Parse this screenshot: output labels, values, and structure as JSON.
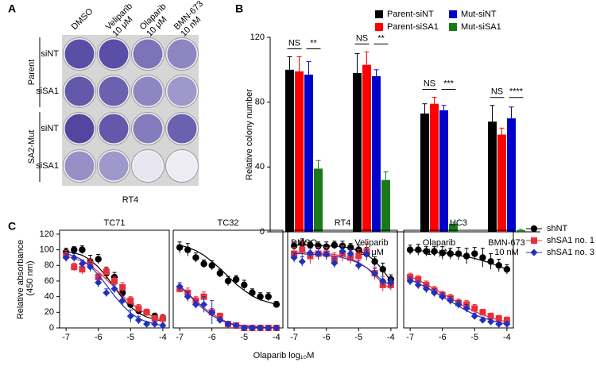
{
  "panel_labels": [
    "A",
    "B",
    "C"
  ],
  "panel_a": {
    "columns": [
      "DMSO",
      "Veliparib 10 μM",
      "Olaparib 10 μM",
      "BMN-673 10 nM"
    ],
    "groups": [
      "Parent",
      "SA2-Mut"
    ],
    "rows": [
      "siNT",
      "siSA1",
      "siNT",
      "siSA1"
    ],
    "cell_line": "RT4"
  },
  "chart_data": [
    {
      "type": "bar",
      "y_label": "Relative colony number",
      "categories": [
        "DMSO",
        "Veliparib 10 μM",
        "Olaparib 10 μM",
        "BMN-673 10 nM"
      ],
      "series": [
        {
          "name": "Parent-siNT",
          "color": "#000000",
          "values": [
            100,
            98,
            73,
            68
          ],
          "errors": [
            8,
            12,
            6,
            10
          ]
        },
        {
          "name": "Parent-siSA1",
          "color": "#ff0000",
          "values": [
            99,
            103,
            79,
            60
          ],
          "errors": [
            9,
            8,
            4,
            4
          ]
        },
        {
          "name": "Mut-siNT",
          "color": "#0000cc",
          "values": [
            97,
            96,
            75,
            70
          ],
          "errors": [
            8,
            4,
            3,
            7
          ]
        },
        {
          "name": "Mut-siSA1",
          "color": "#1a7a1a",
          "values": [
            39,
            32,
            5,
            1
          ],
          "errors": [
            5,
            5,
            1,
            0.5
          ]
        }
      ],
      "significance": [
        [
          "NS",
          "**"
        ],
        [
          "NS",
          "**"
        ],
        [
          "NS",
          "***"
        ],
        [
          "NS",
          "****"
        ]
      ],
      "ylim": [
        0,
        120
      ],
      "yticks": [
        0,
        40,
        80,
        120
      ]
    },
    {
      "type": "line",
      "title": "TC71",
      "y_label": "Relative absorbance (450 nm)",
      "x_label": "Olaparib log₁₀M",
      "x": [
        -7,
        -6.75,
        -6.5,
        -6.25,
        -6,
        -5.75,
        -5.5,
        -5.25,
        -5,
        -4.75,
        -4.5,
        -4.25,
        -4
      ],
      "series": [
        {
          "name": "shNT",
          "color": "#000000",
          "marker": "circle",
          "values": [
            97,
            100,
            100,
            85,
            88,
            70,
            65,
            45,
            30,
            22,
            20,
            15,
            12
          ],
          "errors": [
            5,
            4,
            5,
            8,
            6,
            7,
            6,
            8,
            5,
            5,
            4,
            4,
            5
          ],
          "fit": [
            98,
            96,
            93,
            87,
            78,
            66,
            52,
            38,
            27,
            19,
            14,
            11,
            9
          ]
        },
        {
          "name": "shSA1 no. 1",
          "color": "#e8303a",
          "marker": "square",
          "values": [
            93,
            78,
            75,
            82,
            65,
            72,
            60,
            52,
            35,
            25,
            20,
            12,
            12
          ],
          "errors": [
            6,
            5,
            6,
            6,
            5,
            6,
            5,
            6,
            5,
            5,
            4,
            4,
            4
          ],
          "fit": [
            92,
            89,
            85,
            80,
            72,
            62,
            52,
            41,
            32,
            24,
            18,
            14,
            11
          ]
        },
        {
          "name": "shSA1 no. 3",
          "color": "#2030c0",
          "marker": "diamond",
          "values": [
            90,
            90,
            82,
            78,
            58,
            45,
            50,
            35,
            15,
            10,
            5,
            5,
            3
          ],
          "errors": [
            5,
            5,
            5,
            6,
            6,
            5,
            5,
            6,
            8,
            5,
            3,
            3,
            3
          ],
          "fit": [
            95,
            92,
            87,
            79,
            68,
            55,
            41,
            29,
            19,
            12,
            8,
            5,
            3
          ]
        }
      ],
      "xlim": [
        -7.2,
        -3.8
      ],
      "xticks": [
        -7,
        -6,
        -5,
        -4
      ],
      "ylim": [
        0,
        125
      ],
      "yticks": [
        0,
        20,
        40,
        60,
        80,
        100,
        120
      ]
    },
    {
      "type": "line",
      "title": "TC32",
      "x": [
        -7,
        -6.75,
        -6.5,
        -6.25,
        -6,
        -5.75,
        -5.5,
        -5.25,
        -5,
        -4.75,
        -4.5,
        -4.25,
        -4
      ],
      "series": [
        {
          "color": "#000000",
          "marker": "circle",
          "values": [
            103,
            100,
            90,
            82,
            80,
            70,
            60,
            62,
            55,
            45,
            40,
            40,
            30
          ],
          "errors": [
            7,
            8,
            6,
            5,
            6,
            5,
            6,
            5,
            6,
            5,
            5,
            5,
            4
          ],
          "fit": [
            106,
            103,
            99,
            93,
            85,
            76,
            66,
            56,
            48,
            41,
            36,
            33,
            30
          ]
        },
        {
          "color": "#e8303a",
          "marker": "square",
          "values": [
            50,
            45,
            35,
            40,
            20,
            15,
            5,
            3,
            0,
            0,
            0,
            0,
            0
          ],
          "errors": [
            5,
            6,
            5,
            6,
            5,
            4,
            3,
            2,
            1,
            1,
            1,
            1,
            1
          ],
          "fit": [
            52,
            44,
            35,
            26,
            18,
            12,
            7,
            4,
            3,
            2,
            1,
            1,
            1
          ]
        },
        {
          "color": "#2030c0",
          "marker": "diamond",
          "values": [
            53,
            40,
            30,
            30,
            20,
            10,
            5,
            3,
            0,
            0,
            0,
            0,
            0
          ],
          "errors": [
            5,
            6,
            5,
            10,
            15,
            4,
            3,
            2,
            1,
            1,
            1,
            1,
            1
          ],
          "fit": [
            54,
            44,
            33,
            24,
            16,
            10,
            6,
            3,
            2,
            1,
            1,
            0,
            0
          ]
        }
      ],
      "xlim": [
        -7.2,
        -3.8
      ],
      "xticks": [
        -7,
        -6,
        -5,
        -4
      ],
      "ylim": [
        0,
        125
      ],
      "yticks": [
        0,
        20,
        40,
        60,
        80,
        100,
        120
      ]
    },
    {
      "type": "line",
      "title": "RT4",
      "x": [
        -7,
        -6.75,
        -6.5,
        -6.25,
        -6,
        -5.75,
        -5.5,
        -5.25,
        -5,
        -4.75,
        -4.5,
        -4.25,
        -4
      ],
      "series": [
        {
          "color": "#000000",
          "marker": "circle",
          "values": [
            105,
            108,
            106,
            105,
            104,
            106,
            105,
            103,
            100,
            95,
            85,
            75,
            62
          ],
          "errors": [
            5,
            6,
            5,
            5,
            6,
            5,
            6,
            5,
            6,
            8,
            6,
            8,
            6
          ],
          "fit": [
            106,
            106,
            106,
            106,
            105,
            105,
            104,
            102,
            99,
            94,
            86,
            74,
            60
          ]
        },
        {
          "color": "#e8303a",
          "marker": "square",
          "values": [
            95,
            100,
            92,
            95,
            95,
            88,
            95,
            90,
            92,
            98,
            70,
            55,
            55
          ],
          "errors": [
            8,
            10,
            10,
            8,
            8,
            8,
            10,
            8,
            8,
            10,
            8,
            8,
            7
          ],
          "fit": [
            97,
            97,
            96,
            96,
            95,
            94,
            92,
            89,
            84,
            77,
            67,
            57,
            50
          ]
        },
        {
          "color": "#2030c0",
          "marker": "diamond",
          "values": [
            90,
            85,
            96,
            95,
            94,
            83,
            98,
            95,
            80,
            95,
            70,
            60,
            58
          ],
          "errors": [
            6,
            6,
            6,
            6,
            6,
            6,
            6,
            6,
            6,
            6,
            6,
            6,
            6
          ],
          "fit": [
            95,
            95,
            94,
            94,
            93,
            92,
            90,
            87,
            83,
            77,
            69,
            60,
            55
          ]
        }
      ],
      "xlim": [
        -7.2,
        -3.8
      ],
      "xticks": [
        -7,
        -6,
        -5,
        -4
      ],
      "ylim": [
        0,
        125
      ],
      "yticks": [
        0,
        20,
        40,
        60,
        80,
        100,
        120
      ]
    },
    {
      "type": "line",
      "title": "UC3",
      "x": [
        -7,
        -6.75,
        -6.5,
        -6.25,
        -6,
        -5.75,
        -5.5,
        -5.25,
        -5,
        -4.75,
        -4.5,
        -4.25,
        -4
      ],
      "series": [
        {
          "color": "#000000",
          "marker": "circle",
          "values": [
            100,
            100,
            98,
            98,
            96,
            95,
            95,
            92,
            95,
            90,
            85,
            80,
            75
          ],
          "errors": [
            6,
            7,
            6,
            6,
            8,
            7,
            8,
            10,
            8,
            12,
            10,
            8,
            6
          ],
          "fit": [
            100,
            99,
            98,
            97,
            96,
            95,
            93,
            91,
            89,
            86,
            83,
            79,
            75
          ]
        },
        {
          "color": "#e8303a",
          "marker": "square",
          "values": [
            65,
            62,
            55,
            48,
            42,
            38,
            32,
            30,
            25,
            20,
            15,
            12,
            10
          ],
          "errors": [
            5,
            5,
            5,
            5,
            5,
            5,
            5,
            5,
            5,
            4,
            4,
            4,
            4
          ],
          "fit": [
            66,
            61,
            56,
            50,
            44,
            38,
            32,
            26,
            21,
            17,
            13,
            10,
            8
          ]
        },
        {
          "color": "#2030c0",
          "marker": "diamond",
          "values": [
            60,
            55,
            50,
            45,
            40,
            35,
            30,
            25,
            15,
            10,
            8,
            5,
            5
          ],
          "errors": [
            5,
            5,
            5,
            5,
            5,
            5,
            5,
            5,
            4,
            4,
            3,
            3,
            3
          ],
          "fit": [
            62,
            57,
            52,
            46,
            40,
            34,
            28,
            22,
            17,
            13,
            10,
            7,
            5
          ]
        }
      ],
      "xlim": [
        -7.2,
        -3.8
      ],
      "xticks": [
        -7,
        -6,
        -5,
        -4
      ],
      "ylim": [
        0,
        125
      ],
      "yticks": [
        0,
        20,
        40,
        60,
        80,
        100,
        120
      ]
    }
  ]
}
